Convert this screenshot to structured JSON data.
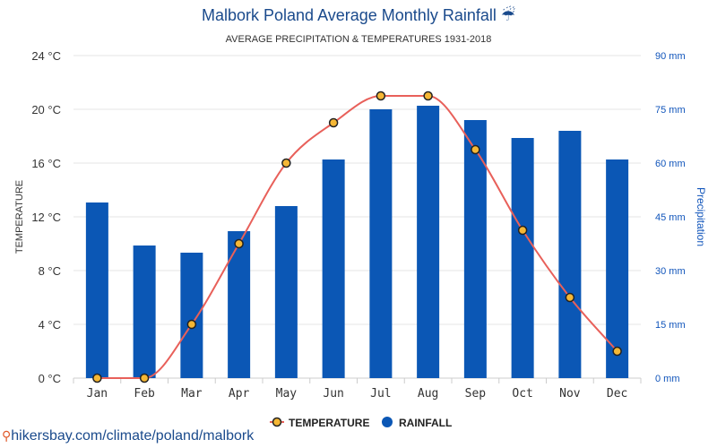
{
  "chart_data": {
    "type": "bar+line",
    "title": "Malbork Poland Average Monthly Rainfall ☔",
    "subtitle": "AVERAGE PRECIPITATION & TEMPERATURES 1931-2018",
    "categories": [
      "Jan",
      "Feb",
      "Mar",
      "Apr",
      "May",
      "Jun",
      "Jul",
      "Aug",
      "Sep",
      "Oct",
      "Nov",
      "Dec"
    ],
    "series": [
      {
        "name": "TEMPERATURE",
        "type": "line",
        "axis": "left",
        "color": "#e8605a",
        "marker_color": "#f5b735",
        "values": [
          0,
          0,
          4,
          10,
          16,
          19,
          21,
          21,
          17,
          11,
          6,
          2
        ]
      },
      {
        "name": "RAINFALL",
        "type": "bar",
        "axis": "right",
        "color": "#0b57b5",
        "values": [
          49,
          37,
          35,
          41,
          48,
          61,
          75,
          76,
          72,
          67,
          69,
          61
        ]
      }
    ],
    "y_left": {
      "label": "TEMPERATURE",
      "range": [
        0,
        24
      ],
      "ticks": [
        "0 °C",
        "4 °C",
        "8 °C",
        "12 °C",
        "16 °C",
        "20 °C",
        "24 °C"
      ]
    },
    "y_right": {
      "label": "Precipitation",
      "range": [
        0,
        90
      ],
      "ticks": [
        "0 mm",
        "15 mm",
        "30 mm",
        "45 mm",
        "60 mm",
        "75 mm",
        "90 mm"
      ]
    },
    "grid": true,
    "legend_position": "bottom-center"
  },
  "footer": {
    "text": "hikersbay.com/climate/poland/malbork",
    "icon": "location-pin-icon"
  }
}
